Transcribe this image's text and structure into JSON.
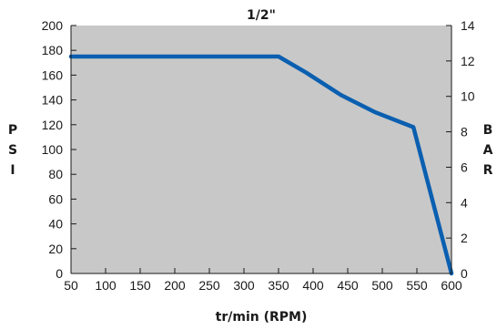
{
  "chart_data": {
    "type": "line",
    "title": "1/2\"",
    "xlabel": "tr/min (RPM)",
    "ylabel_left": "PSI",
    "ylabel_right": "BAR",
    "x_ticks": [
      50,
      100,
      150,
      200,
      250,
      300,
      350,
      400,
      450,
      500,
      550,
      600
    ],
    "y_left_ticks": [
      0,
      20,
      40,
      60,
      80,
      100,
      120,
      140,
      160,
      180,
      200
    ],
    "y_right_ticks": [
      0,
      2,
      4,
      6,
      8,
      10,
      12,
      14
    ],
    "xlim": [
      50,
      600
    ],
    "ylim_left": [
      0,
      200
    ],
    "ylim_right": [
      0,
      14
    ],
    "grid": false,
    "colors": {
      "plot_bg": "#c8c8c8",
      "line": "#0a5fb0",
      "axis": "#1a1a1a"
    },
    "series": [
      {
        "x": [
          50,
          350,
          390,
          440,
          490,
          545,
          600
        ],
        "y": [
          175,
          175,
          162,
          144,
          130,
          118,
          0
        ]
      }
    ]
  }
}
